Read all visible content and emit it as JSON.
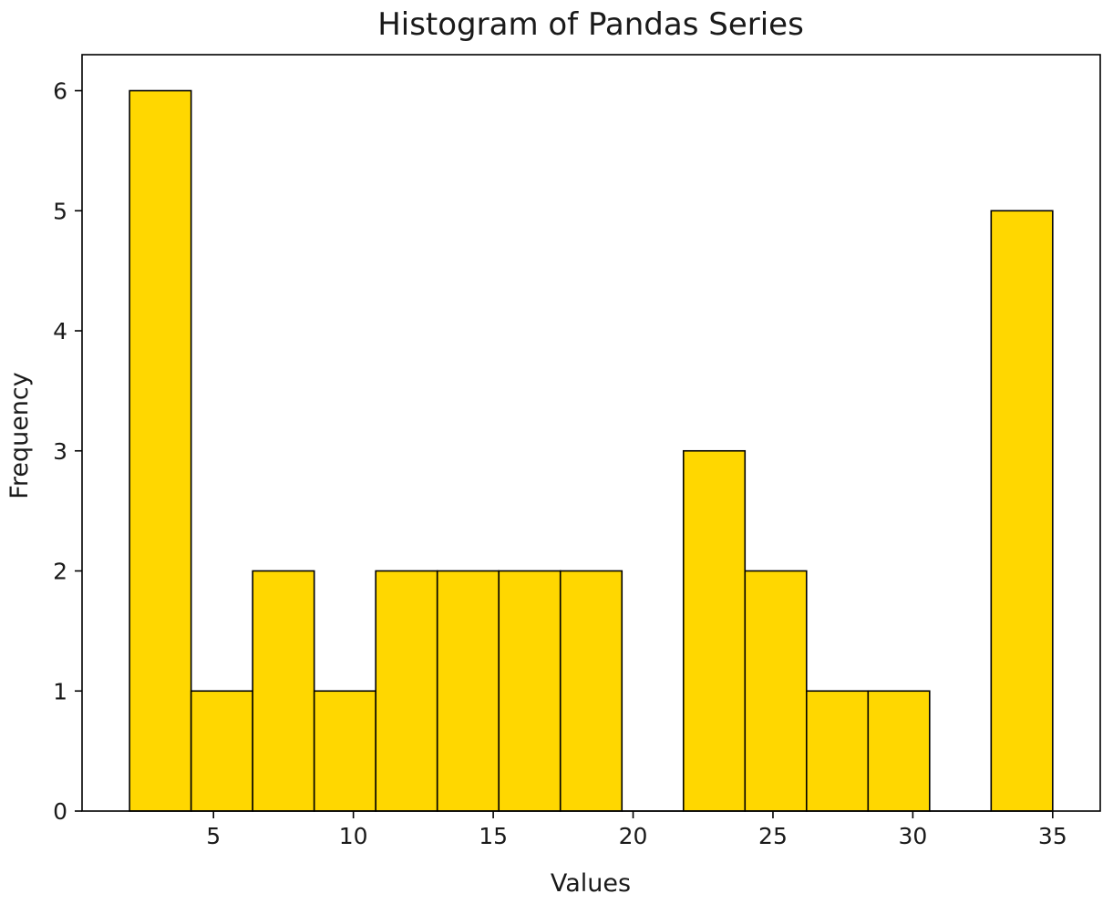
{
  "chart_data": {
    "type": "bar",
    "title": "Histogram of Pandas Series",
    "xlabel": "Values",
    "ylabel": "Frequency",
    "bar_color": "#ffd700",
    "edge_color": "#000000",
    "xlim": [
      0.3,
      36.7
    ],
    "ylim": [
      0,
      6.3
    ],
    "xticks": [
      5,
      10,
      15,
      20,
      25,
      30,
      35
    ],
    "yticks": [
      0,
      1,
      2,
      3,
      4,
      5,
      6
    ],
    "grid": false,
    "bins": [
      {
        "start": 2.0,
        "end": 4.2,
        "count": 6
      },
      {
        "start": 4.2,
        "end": 6.4,
        "count": 1
      },
      {
        "start": 6.4,
        "end": 8.6,
        "count": 2
      },
      {
        "start": 8.6,
        "end": 10.8,
        "count": 1
      },
      {
        "start": 10.8,
        "end": 13.0,
        "count": 2
      },
      {
        "start": 13.0,
        "end": 15.2,
        "count": 2
      },
      {
        "start": 15.2,
        "end": 17.4,
        "count": 2
      },
      {
        "start": 17.4,
        "end": 19.6,
        "count": 2
      },
      {
        "start": 19.6,
        "end": 21.8,
        "count": 0
      },
      {
        "start": 21.8,
        "end": 24.0,
        "count": 3
      },
      {
        "start": 24.0,
        "end": 26.2,
        "count": 2
      },
      {
        "start": 26.2,
        "end": 28.4,
        "count": 1
      },
      {
        "start": 28.4,
        "end": 30.6,
        "count": 1
      },
      {
        "start": 30.6,
        "end": 32.8,
        "count": 0
      },
      {
        "start": 32.8,
        "end": 35.0,
        "count": 5
      }
    ]
  }
}
